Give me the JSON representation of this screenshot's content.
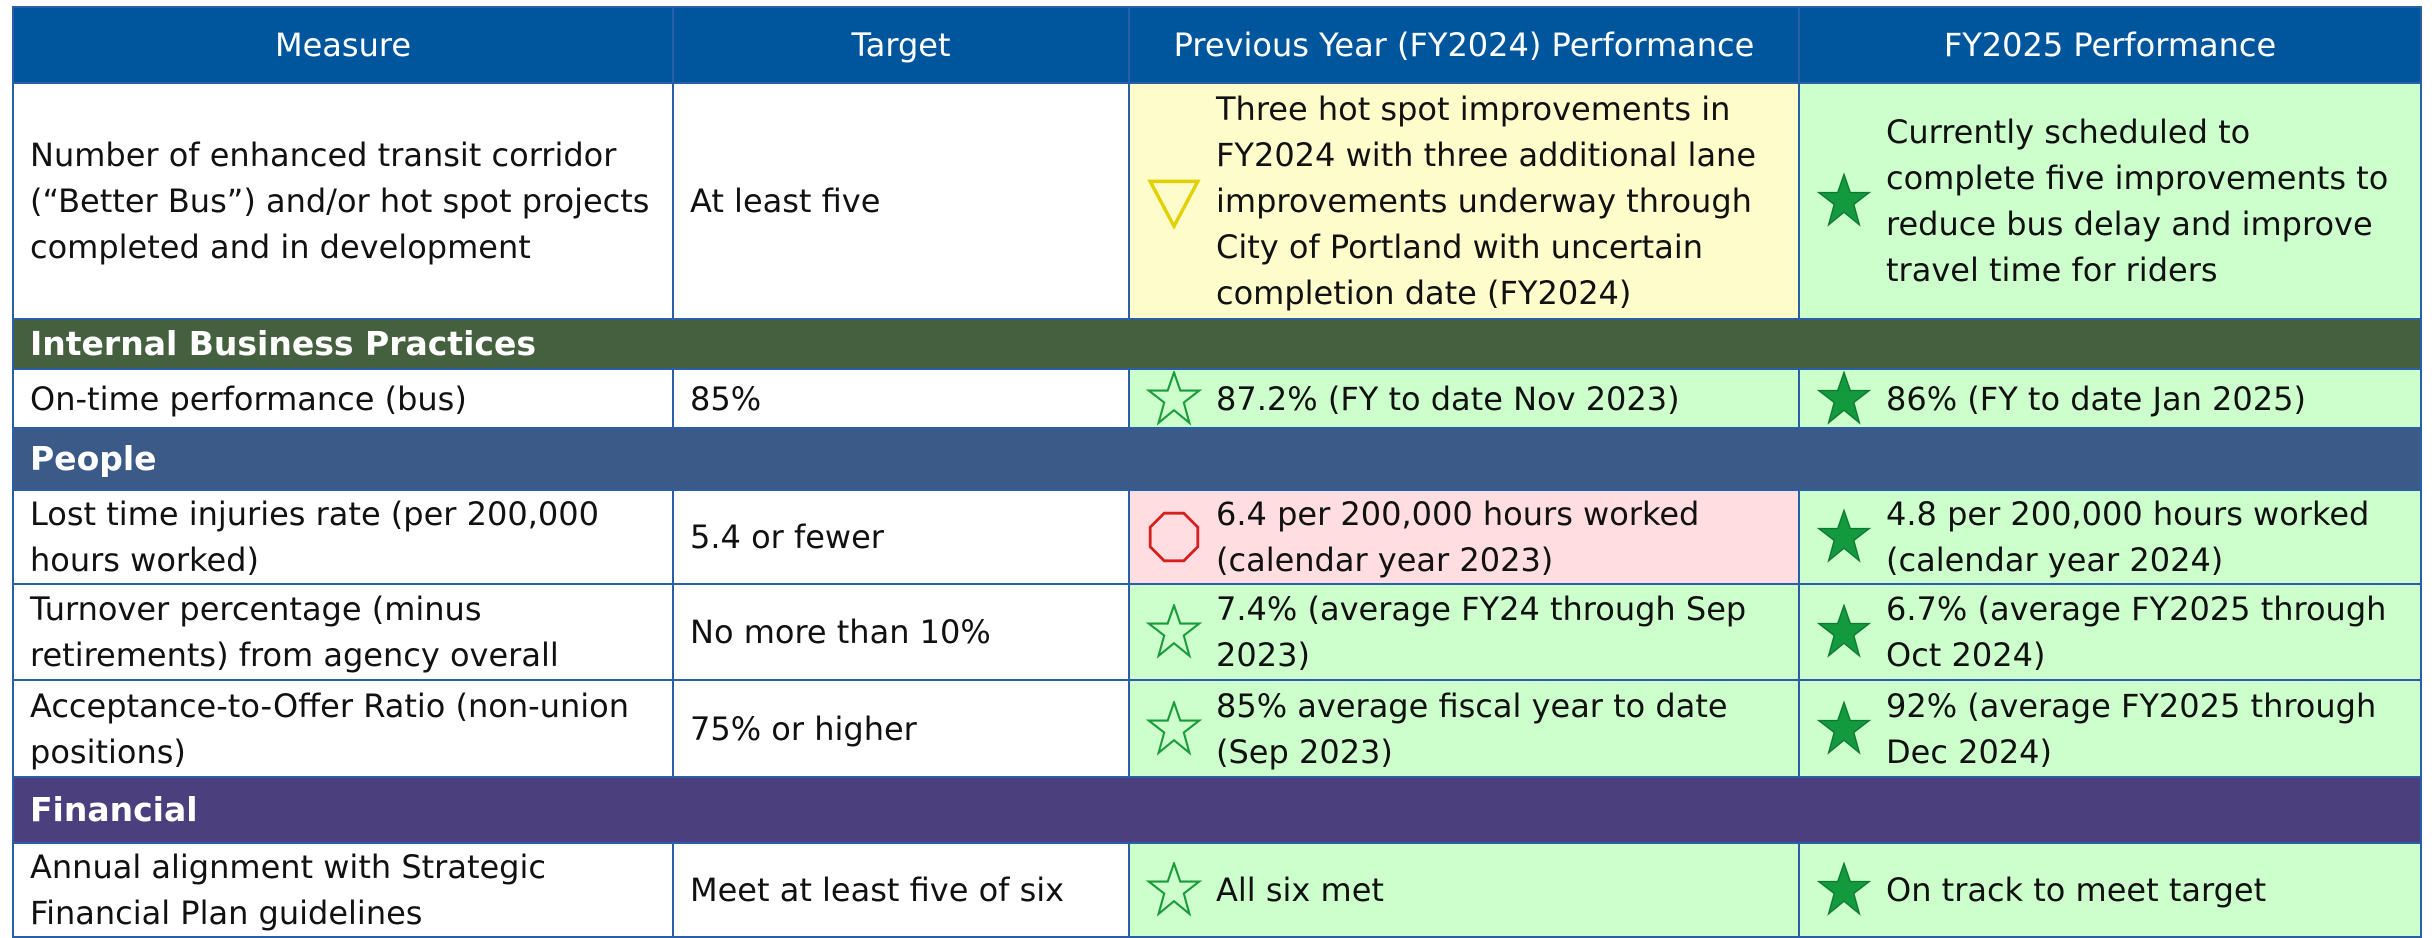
{
  "table": {
    "header": [
      "Measure",
      "Target",
      "Previous Year (FY2024) Performance",
      "FY2025 Performance"
    ],
    "rows": [
      {
        "cells": [
          "Number of enhanced transit corridor (“Better Bus”) and/or hot spot projects completed and in development",
          "At least five",
          "Three hot spot improvements in FY2024 with three additional lane improvements underway through City of Portland with uncertain completion date (FY2024)",
          "Currently scheduled to complete five improvements to reduce bus delay and improve travel time for riders"
        ]
      },
      {
        "section": "Internal Business Practices"
      },
      {
        "cells": [
          "On-time performance (bus)",
          "85%",
          "87.2% (FY to date Nov 2023)",
          "86% (FY to date Jan 2025)"
        ]
      },
      {
        "section": "People"
      },
      {
        "cells": [
          "Lost time injuries rate (per 200,000 hours worked)",
          "5.4 or fewer",
          "6.4 per 200,000 hours worked (calendar year 2023)",
          "4.8 per 200,000 hours worked (calendar year 2024)"
        ]
      },
      {
        "cells": [
          "Turnover percentage (minus retirements) from agency overall",
          "No more than 10%",
          "7.4% (average FY24 through Sep 2023)",
          "6.7% (average FY2025 through Oct 2024)"
        ]
      },
      {
        "cells": [
          "Acceptance-to-Offer Ratio (non-union positions)",
          "75% or higher",
          "85% average fiscal year to date (Sep 2023)",
          "92% (average FY2025 through Dec 2024)"
        ]
      },
      {
        "section": "Financial"
      },
      {
        "cells": [
          "Annual alignment with Strategic Financial Plan guidelines",
          "Meet at least five of six",
          "All six met",
          "On track to meet target"
        ]
      }
    ]
  }
}
